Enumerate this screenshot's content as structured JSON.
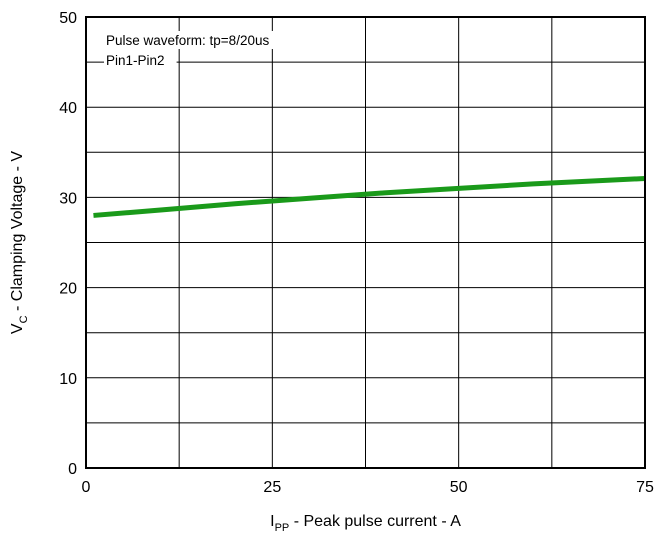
{
  "chart_data": {
    "type": "line",
    "xlabel": {
      "main": "I",
      "sub": "PP",
      "rest": " - Peak pulse current - A"
    },
    "ylabel": {
      "main": "V",
      "sub": "C",
      "rest": " - Clamping Voltage - V"
    },
    "xlim": [
      0,
      75
    ],
    "ylim": [
      0,
      50
    ],
    "x_ticks": [
      0,
      25,
      50,
      75
    ],
    "y_ticks": [
      0,
      10,
      20,
      30,
      40,
      50
    ],
    "x_tick_labels": [
      "0",
      "25",
      "50",
      "75"
    ],
    "y_tick_labels": [
      "0",
      "10",
      "20",
      "30",
      "40",
      "50"
    ],
    "x_grid": [
      0,
      12.5,
      25,
      37.5,
      50,
      62.5,
      75
    ],
    "y_grid": [
      0,
      5,
      10,
      15,
      20,
      25,
      30,
      35,
      40,
      45,
      50
    ],
    "grid": true,
    "annotations": [
      "Pulse waveform: tp=8/20us",
      "Pin1-Pin2"
    ],
    "series": [
      {
        "color": "#1a9a1a",
        "x": [
          1,
          10,
          20,
          30,
          40,
          50,
          60,
          70,
          75
        ],
        "y": [
          28.0,
          28.6,
          29.3,
          29.9,
          30.5,
          31.0,
          31.5,
          31.9,
          32.1
        ]
      }
    ]
  }
}
